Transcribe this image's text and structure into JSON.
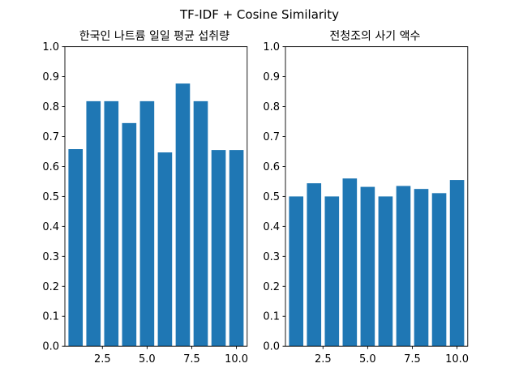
{
  "figure": {
    "suptitle": "TF-IDF + Cosine Similarity"
  },
  "chart_data": [
    {
      "type": "bar",
      "title": "한국인 나트륨 일일 평균 섭취량",
      "xlabel": "",
      "ylabel": "",
      "x": [
        1,
        2,
        3,
        4,
        5,
        6,
        7,
        8,
        9,
        10
      ],
      "values": [
        0.658,
        0.818,
        0.818,
        0.745,
        0.818,
        0.647,
        0.877,
        0.818,
        0.655,
        0.655
      ],
      "xlim": [
        0.4,
        10.6
      ],
      "ylim": [
        0.0,
        1.0
      ],
      "xticks": [
        2.5,
        5.0,
        7.5,
        10.0
      ],
      "xtick_labels": [
        "2.5",
        "5.0",
        "7.5",
        "10.0"
      ],
      "yticks": [
        0.0,
        0.1,
        0.2,
        0.3,
        0.4,
        0.5,
        0.6,
        0.7,
        0.8,
        0.9,
        1.0
      ],
      "ytick_labels": [
        "0.0",
        "0.1",
        "0.2",
        "0.3",
        "0.4",
        "0.5",
        "0.6",
        "0.7",
        "0.8",
        "0.9",
        "1.0"
      ],
      "bar_color": "#1f77b4",
      "grid": false
    },
    {
      "type": "bar",
      "title": "전청조의 사기 액수",
      "xlabel": "",
      "ylabel": "",
      "x": [
        1,
        2,
        3,
        4,
        5,
        6,
        7,
        8,
        9,
        10
      ],
      "values": [
        0.5,
        0.544,
        0.5,
        0.56,
        0.532,
        0.5,
        0.535,
        0.525,
        0.511,
        0.555
      ],
      "xlim": [
        0.4,
        10.6
      ],
      "ylim": [
        0.0,
        1.0
      ],
      "xticks": [
        2.5,
        5.0,
        7.5,
        10.0
      ],
      "xtick_labels": [
        "2.5",
        "5.0",
        "7.5",
        "10.0"
      ],
      "yticks": [
        0.0,
        0.1,
        0.2,
        0.3,
        0.4,
        0.5,
        0.6,
        0.7,
        0.8,
        0.9,
        1.0
      ],
      "ytick_labels": [
        "0.0",
        "0.1",
        "0.2",
        "0.3",
        "0.4",
        "0.5",
        "0.6",
        "0.7",
        "0.8",
        "0.9",
        "1.0"
      ],
      "bar_color": "#1f77b4",
      "grid": false
    }
  ]
}
